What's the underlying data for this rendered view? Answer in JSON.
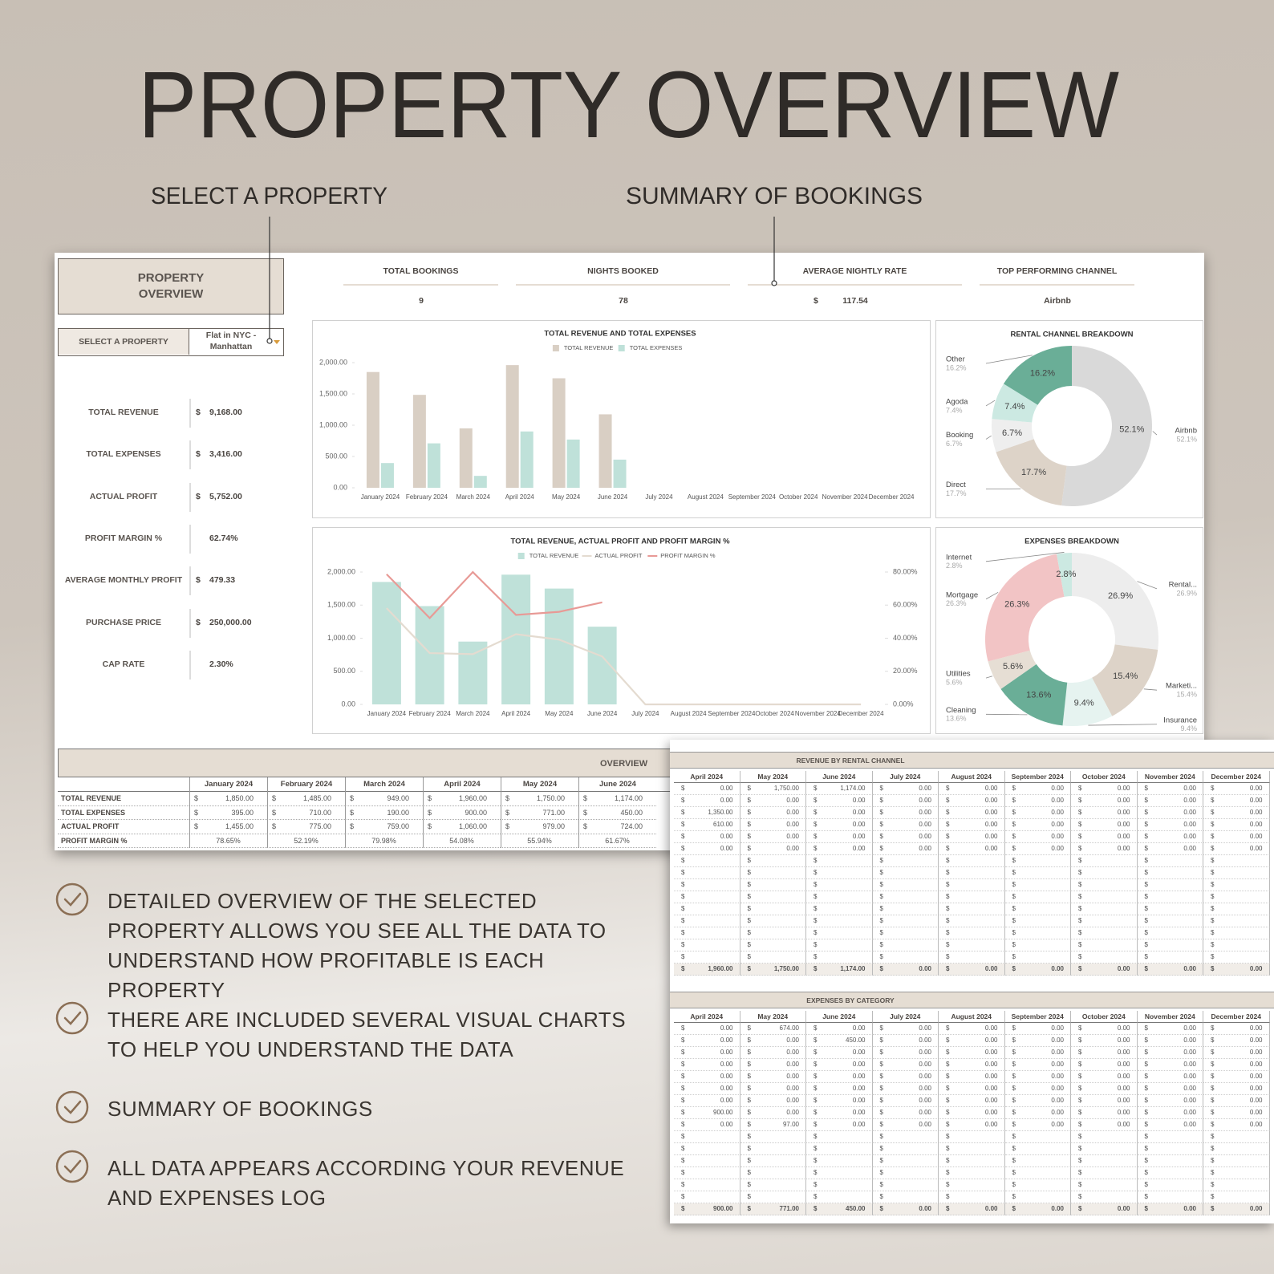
{
  "header": {
    "title": "PROPERTY OVERVIEW",
    "callouts": [
      "SELECT A PROPERTY",
      "SUMMARY OF BOOKINGS"
    ]
  },
  "dashboard": {
    "title": "PROPERTY OVERVIEW",
    "select_label": "SELECT A PROPERTY",
    "selected_property": "Flat in NYC - Manhattan",
    "summary": [
      {
        "label": "TOTAL BOOKINGS",
        "value": "9"
      },
      {
        "label": "NIGHTS BOOKED",
        "value": "78"
      },
      {
        "label": "AVERAGE NIGHTLY RATE",
        "currency": "$",
        "value": "117.54"
      },
      {
        "label": "TOP PERFORMING CHANNEL",
        "value": "Airbnb"
      }
    ],
    "kpis": [
      {
        "label": "TOTAL REVENUE",
        "currency": "$",
        "value": "9,168.00"
      },
      {
        "label": "TOTAL EXPENSES",
        "currency": "$",
        "value": "3,416.00"
      },
      {
        "label": "ACTUAL PROFIT",
        "currency": "$",
        "value": "5,752.00"
      },
      {
        "label": "PROFIT MARGIN %",
        "value": "62.74%"
      },
      {
        "label": "AVERAGE MONTHLY PROFIT",
        "currency": "$",
        "value": "479.33"
      },
      {
        "label": "PURCHASE PRICE",
        "currency": "$",
        "value": "250,000.00"
      },
      {
        "label": "CAP RATE",
        "value": "2.30%"
      }
    ]
  },
  "chart_data": [
    {
      "type": "bar",
      "title": "TOTAL REVENUE AND TOTAL EXPENSES",
      "categories": [
        "January 2024",
        "February 2024",
        "March 2024",
        "April 2024",
        "May 2024",
        "June 2024",
        "July 2024",
        "August 2024",
        "September 2024",
        "October 2024",
        "November 2024",
        "December 2024"
      ],
      "series": [
        {
          "name": "TOTAL REVENUE",
          "color": "#d9cfc4",
          "values": [
            1850,
            1485,
            949,
            1960,
            1750,
            1174,
            0,
            0,
            0,
            0,
            0,
            0
          ]
        },
        {
          "name": "TOTAL EXPENSES",
          "color": "#bfe1d9",
          "values": [
            395,
            710,
            190,
            900,
            771,
            450,
            0,
            0,
            0,
            0,
            0,
            0
          ]
        }
      ],
      "ylim": [
        0,
        2000
      ],
      "yticks": [
        {
          "value": 0,
          "label": "0.00"
        },
        {
          "value": 500,
          "label": "500.00"
        },
        {
          "value": 1000,
          "label": "1,000.00"
        },
        {
          "value": 1500,
          "label": "1,500.00"
        },
        {
          "value": 2000,
          "label": "2,000.00"
        }
      ]
    },
    {
      "type": "combo",
      "title": "TOTAL REVENUE, ACTUAL PROFIT AND PROFIT MARGIN %",
      "categories": [
        "January 2024",
        "February 2024",
        "March 2024",
        "April 2024",
        "May 2024",
        "June 2024",
        "July 2024",
        "August 2024",
        "September 2024",
        "October 2024",
        "November 2024",
        "December 2024"
      ],
      "series": [
        {
          "name": "TOTAL REVENUE",
          "type": "bar",
          "color": "#bfe1d9",
          "values": [
            1850,
            1485,
            949,
            1960,
            1750,
            1174,
            0,
            0,
            0,
            0,
            0,
            0
          ]
        },
        {
          "name": "ACTUAL PROFIT",
          "type": "line",
          "color": "#e4dbd0",
          "values": [
            1455,
            775,
            759,
            1060,
            979,
            724,
            0,
            0,
            0,
            0,
            0,
            0
          ]
        },
        {
          "name": "PROFIT MARGIN %",
          "type": "line",
          "axis": "y2",
          "color": "#e89a96",
          "values": [
            78.65,
            52.19,
            79.98,
            54.08,
            55.94,
            61.67,
            null,
            null,
            null,
            null,
            null,
            null
          ]
        }
      ],
      "ylim": [
        0,
        2000
      ],
      "yticks": [
        {
          "value": 0,
          "label": "0.00"
        },
        {
          "value": 500,
          "label": "500.00"
        },
        {
          "value": 1000,
          "label": "1,000.00"
        },
        {
          "value": 1500,
          "label": "1,500.00"
        },
        {
          "value": 2000,
          "label": "2,000.00"
        }
      ],
      "y2lim": [
        0,
        80
      ],
      "y2ticks": [
        {
          "value": 0,
          "label": "0.00%"
        },
        {
          "value": 20,
          "label": "20.00%"
        },
        {
          "value": 40,
          "label": "40.00%"
        },
        {
          "value": 60,
          "label": "60.00%"
        },
        {
          "value": 80,
          "label": "80.00%"
        }
      ]
    },
    {
      "type": "pie",
      "title": "RENTAL CHANNEL BREAKDOWN",
      "categories": [
        "Airbnb",
        "Direct",
        "Booking",
        "Agoda",
        "Other"
      ],
      "values": [
        52.1,
        17.7,
        6.7,
        7.4,
        16.2
      ],
      "value_labels": [
        "52.1%",
        "17.7%",
        "6.7%",
        "7.4%",
        "16.2%"
      ],
      "colors": [
        "#d9d9d9",
        "#ddd3c8",
        "#eeeeee",
        "#cce9e2",
        "#6aae97"
      ]
    },
    {
      "type": "pie",
      "title": "EXPENSES BREAKDOWN",
      "categories": [
        "Rental...",
        "Marketi...",
        "Insurance",
        "Cleaning",
        "Utilities",
        "Mortgage",
        "Internet"
      ],
      "values": [
        26.9,
        15.4,
        9.4,
        13.6,
        5.6,
        26.3,
        2.8
      ],
      "value_labels": [
        "26.9%",
        "15.4%",
        "9.4%",
        "13.6%",
        "5.6%",
        "26.3%",
        "2.8%"
      ],
      "colors": [
        "#ededed",
        "#ddd3c8",
        "#e6f3f0",
        "#6aae97",
        "#e6ded4",
        "#f2c4c5",
        "#cce9e2"
      ]
    }
  ],
  "overview": {
    "title": "OVERVIEW",
    "columns": [
      "January 2024",
      "February 2024",
      "March 2024",
      "April 2024",
      "May 2024",
      "June 2024"
    ],
    "rows": [
      {
        "label": "TOTAL REVENUE",
        "currency": "$",
        "values": [
          "1,850.00",
          "1,485.00",
          "949.00",
          "1,960.00",
          "1,750.00",
          "1,174.00"
        ]
      },
      {
        "label": "TOTAL EXPENSES",
        "currency": "$",
        "values": [
          "395.00",
          "710.00",
          "190.00",
          "900.00",
          "771.00",
          "450.00"
        ]
      },
      {
        "label": "ACTUAL PROFIT",
        "currency": "$",
        "values": [
          "1,455.00",
          "775.00",
          "759.00",
          "1,060.00",
          "979.00",
          "724.00"
        ]
      },
      {
        "label": "PROFIT MARGIN %",
        "values": [
          "78.65%",
          "52.19%",
          "79.98%",
          "54.08%",
          "55.94%",
          "61.67%"
        ]
      }
    ]
  },
  "revenue_by_channel": {
    "title": "REVENUE BY RENTAL CHANNEL",
    "currency": "$",
    "columns": [
      "April 2024",
      "May 2024",
      "June 2024",
      "July 2024",
      "August 2024",
      "September 2024",
      "October 2024",
      "November 2024",
      "December 2024"
    ],
    "rows": [
      [
        "0.00",
        "1,750.00",
        "1,174.00",
        "0.00",
        "0.00",
        "0.00",
        "0.00",
        "0.00",
        "0.00"
      ],
      [
        "0.00",
        "0.00",
        "0.00",
        "0.00",
        "0.00",
        "0.00",
        "0.00",
        "0.00",
        "0.00"
      ],
      [
        "1,350.00",
        "0.00",
        "0.00",
        "0.00",
        "0.00",
        "0.00",
        "0.00",
        "0.00",
        "0.00"
      ],
      [
        "610.00",
        "0.00",
        "0.00",
        "0.00",
        "0.00",
        "0.00",
        "0.00",
        "0.00",
        "0.00"
      ],
      [
        "0.00",
        "0.00",
        "0.00",
        "0.00",
        "0.00",
        "0.00",
        "0.00",
        "0.00",
        "0.00"
      ],
      [
        "0.00",
        "0.00",
        "0.00",
        "0.00",
        "0.00",
        "0.00",
        "0.00",
        "0.00",
        "0.00"
      ]
    ],
    "total": [
      "1,960.00",
      "1,750.00",
      "1,174.00",
      "0.00",
      "0.00",
      "0.00",
      "0.00",
      "0.00",
      "0.00"
    ]
  },
  "expenses_by_category": {
    "title": "EXPENSES BY CATEGORY",
    "currency": "$",
    "columns": [
      "April 2024",
      "May 2024",
      "June 2024",
      "July 2024",
      "August 2024",
      "September 2024",
      "October 2024",
      "November 2024",
      "December 2024"
    ],
    "rows": [
      [
        "0.00",
        "674.00",
        "0.00",
        "0.00",
        "0.00",
        "0.00",
        "0.00",
        "0.00",
        "0.00"
      ],
      [
        "0.00",
        "0.00",
        "450.00",
        "0.00",
        "0.00",
        "0.00",
        "0.00",
        "0.00",
        "0.00"
      ],
      [
        "0.00",
        "0.00",
        "0.00",
        "0.00",
        "0.00",
        "0.00",
        "0.00",
        "0.00",
        "0.00"
      ],
      [
        "0.00",
        "0.00",
        "0.00",
        "0.00",
        "0.00",
        "0.00",
        "0.00",
        "0.00",
        "0.00"
      ],
      [
        "0.00",
        "0.00",
        "0.00",
        "0.00",
        "0.00",
        "0.00",
        "0.00",
        "0.00",
        "0.00"
      ],
      [
        "0.00",
        "0.00",
        "0.00",
        "0.00",
        "0.00",
        "0.00",
        "0.00",
        "0.00",
        "0.00"
      ],
      [
        "0.00",
        "0.00",
        "0.00",
        "0.00",
        "0.00",
        "0.00",
        "0.00",
        "0.00",
        "0.00"
      ],
      [
        "900.00",
        "0.00",
        "0.00",
        "0.00",
        "0.00",
        "0.00",
        "0.00",
        "0.00",
        "0.00"
      ],
      [
        "0.00",
        "97.00",
        "0.00",
        "0.00",
        "0.00",
        "0.00",
        "0.00",
        "0.00",
        "0.00"
      ]
    ],
    "total": [
      "900.00",
      "771.00",
      "450.00",
      "0.00",
      "0.00",
      "0.00",
      "0.00",
      "0.00",
      "0.00"
    ]
  },
  "bullets": [
    "DETAILED OVERVIEW OF THE SELECTED PROPERTY ALLOWS YOU SEE ALL THE DATA TO UNDERSTAND HOW PROFITABLE IS EACH PROPERTY",
    "THERE ARE INCLUDED SEVERAL VISUAL CHARTS TO HELP YOU UNDERSTAND THE DATA",
    "SUMMARY OF BOOKINGS",
    "ALL DATA APPEARS ACCORDING YOUR REVENUE AND EXPENSES LOG"
  ]
}
